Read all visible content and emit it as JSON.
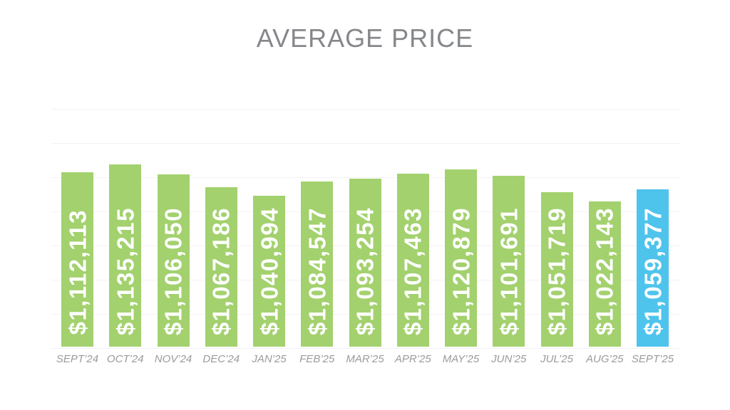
{
  "page": {
    "title": "AVERAGE PRICE"
  },
  "colors": {
    "bar_default": "#a3d16e",
    "bar_highlight": "#4ec4ec",
    "title_text": "#85878a",
    "axis_label_text": "#9b9b9b",
    "gridline": "#f2f2f2",
    "bar_value_text": "#ffffff"
  },
  "chart_data": {
    "type": "bar",
    "title": "AVERAGE PRICE",
    "categories": [
      "SEPT’24",
      "OCT’24",
      "NOV’24",
      "DEC’24",
      "JAN’25",
      "FEB’25",
      "MAR’25",
      "APR’25",
      "MAY’25",
      "JUN’25",
      "JUL’25",
      "AUG’25",
      "SEPT’25"
    ],
    "values": [
      1112113,
      1135215,
      1106050,
      1067186,
      1040994,
      1084547,
      1093254,
      1107463,
      1120879,
      1101691,
      1051719,
      1022143,
      1059377
    ],
    "value_labels": [
      "$1,112,113",
      "$1,135,215",
      "$1,106,050",
      "$1,067,186",
      "$1,040,994",
      "$1,084,547",
      "$1,093,254",
      "$1,107,463",
      "$1,120,879",
      "$1,101,691",
      "$1,051,719",
      "$1,022,143",
      "$1,059,377"
    ],
    "highlight_index": 12,
    "highlight_category": "SEPT’25",
    "xlabel": "",
    "ylabel": "",
    "ylim": [
      580000,
      1305000
    ],
    "y_tick_labels_visible": false,
    "gridlines": {
      "orientation": "horizontal",
      "count": 8,
      "spacing_px": 48
    },
    "legend": "none",
    "bar_value_label_orientation": "vertical-bottom-to-top"
  }
}
